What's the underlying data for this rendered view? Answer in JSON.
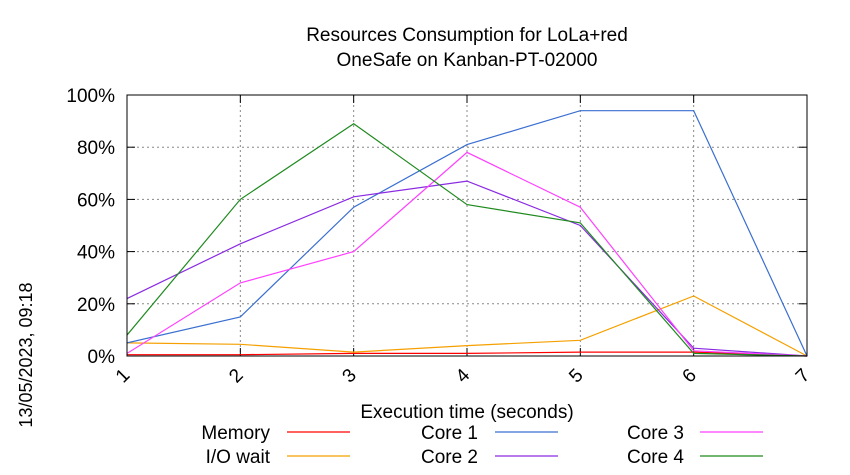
{
  "chart_data": {
    "type": "line",
    "title": "Resources Consumption for LoLa+red",
    "subtitle": "OneSafe on Kanban-PT-02000",
    "xlabel": "Execution time (seconds)",
    "ylabel": "",
    "side_label": "13/05/2023, 09:18",
    "x": [
      1,
      2,
      3,
      4,
      5,
      6,
      7
    ],
    "xlim": [
      1,
      7
    ],
    "ylim": [
      0,
      100
    ],
    "y_unit": "%",
    "yticks": [
      0,
      20,
      40,
      60,
      80,
      100
    ],
    "xticks": [
      1,
      2,
      3,
      4,
      5,
      6,
      7
    ],
    "grid": true,
    "legend_position": "bottom",
    "series": [
      {
        "name": "Memory",
        "color": "#ff0000",
        "values": [
          0.5,
          0.5,
          1,
          1,
          1.5,
          1.5,
          0
        ]
      },
      {
        "name": "I/O wait",
        "color": "#f5a000",
        "values": [
          5,
          4.5,
          1.5,
          4,
          6,
          23,
          0
        ]
      },
      {
        "name": "Core 1",
        "color": "#3a6fd0",
        "values": [
          5,
          15,
          57,
          81,
          94,
          94,
          0
        ]
      },
      {
        "name": "Core 2",
        "color": "#8a2be2",
        "values": [
          22,
          43,
          61,
          67,
          50,
          3,
          0
        ]
      },
      {
        "name": "Core 3",
        "color": "#ff40ff",
        "values": [
          1,
          28,
          40,
          78,
          57,
          2,
          0
        ]
      },
      {
        "name": "Core 4",
        "color": "#1e8a1e",
        "values": [
          8,
          60,
          89,
          58,
          51,
          1,
          0
        ]
      }
    ]
  }
}
